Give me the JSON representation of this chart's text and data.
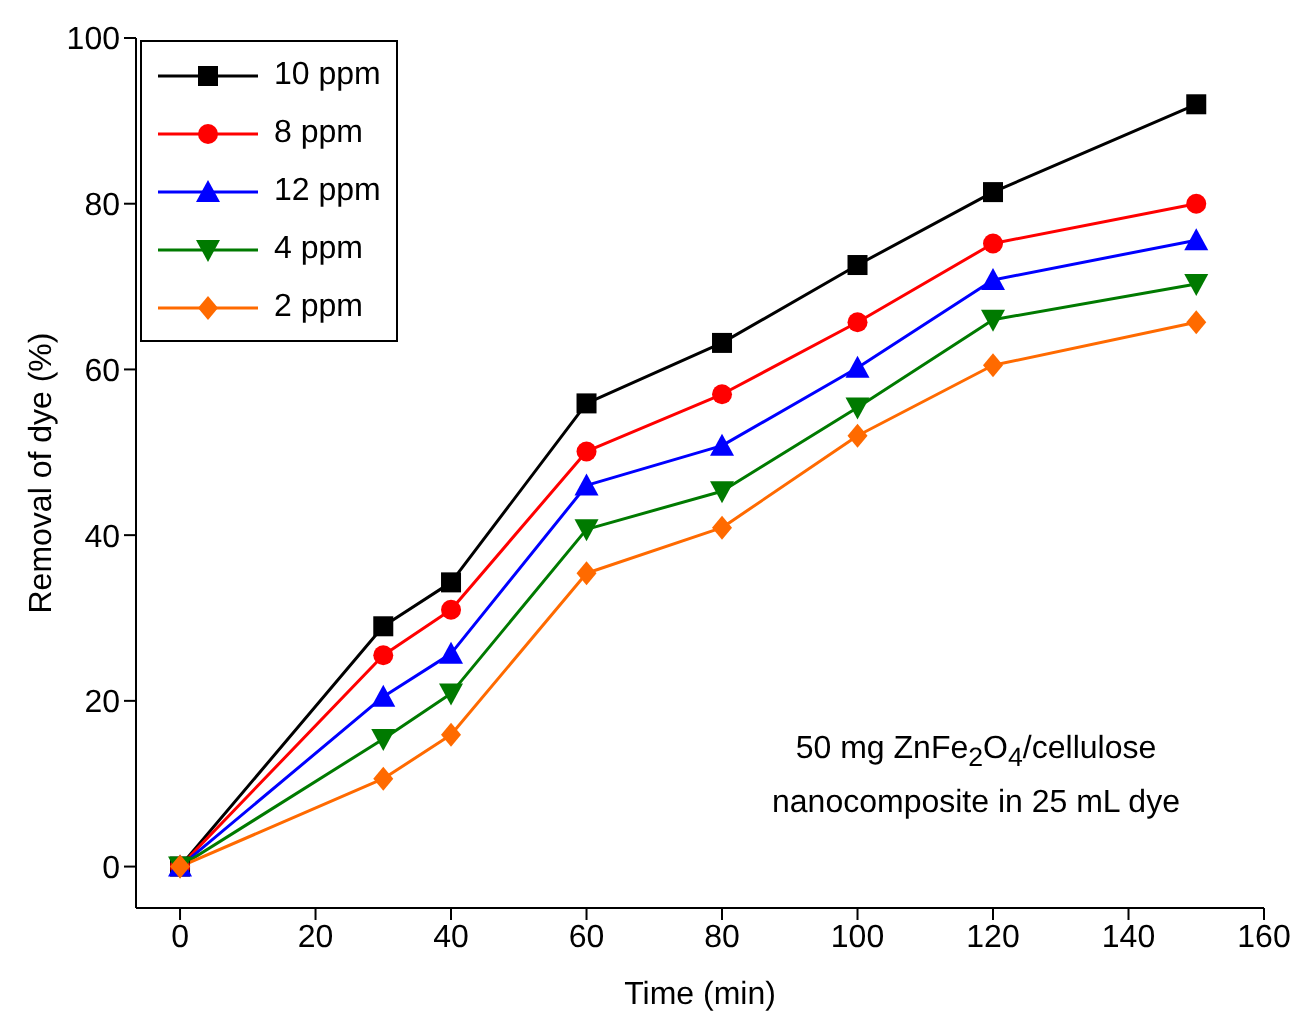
{
  "chart_data": {
    "type": "line",
    "xlabel": "Time (min)",
    "ylabel": "Removal of dye (%)",
    "x": [
      0,
      30,
      40,
      60,
      80,
      100,
      120,
      150
    ],
    "xlim": [
      -6.5,
      160
    ],
    "xticks": [
      0,
      20,
      40,
      60,
      80,
      100,
      120,
      140,
      160
    ],
    "ylim": [
      -5,
      100
    ],
    "yticks": [
      0,
      20,
      40,
      60,
      80,
      100
    ],
    "legend": "top left",
    "line_style": "solid",
    "series": [
      {
        "name": "10 ppm",
        "color": "#000000",
        "marker": "square",
        "values": [
          0,
          29,
          34.3,
          55.9,
          63.2,
          72.6,
          81.4,
          92
        ]
      },
      {
        "name": "8 ppm",
        "color": "#ff0000",
        "marker": "circle",
        "values": [
          0,
          25.5,
          31,
          50.1,
          57,
          65.7,
          75.2,
          80
        ]
      },
      {
        "name": "12 ppm",
        "color": "#0000ff",
        "marker": "triangle",
        "values": [
          0,
          20.5,
          25.7,
          46,
          50.8,
          60.2,
          70.8,
          75.6
        ]
      },
      {
        "name": "4 ppm",
        "color": "#007a00",
        "marker": "triangle-down",
        "values": [
          0,
          15.4,
          20.9,
          40.7,
          45.3,
          55.4,
          66,
          70.3
        ]
      },
      {
        "name": "2 ppm",
        "color": "#ff6a00",
        "marker": "diamond",
        "values": [
          0,
          10.6,
          15.9,
          35.4,
          40.9,
          52,
          60.5,
          65.7
        ]
      }
    ],
    "annotations": [
      "50 mg ZnFe$_{2}$O$_{4}$/cellulose\nnanocomposite in 25 mL dye"
    ]
  }
}
